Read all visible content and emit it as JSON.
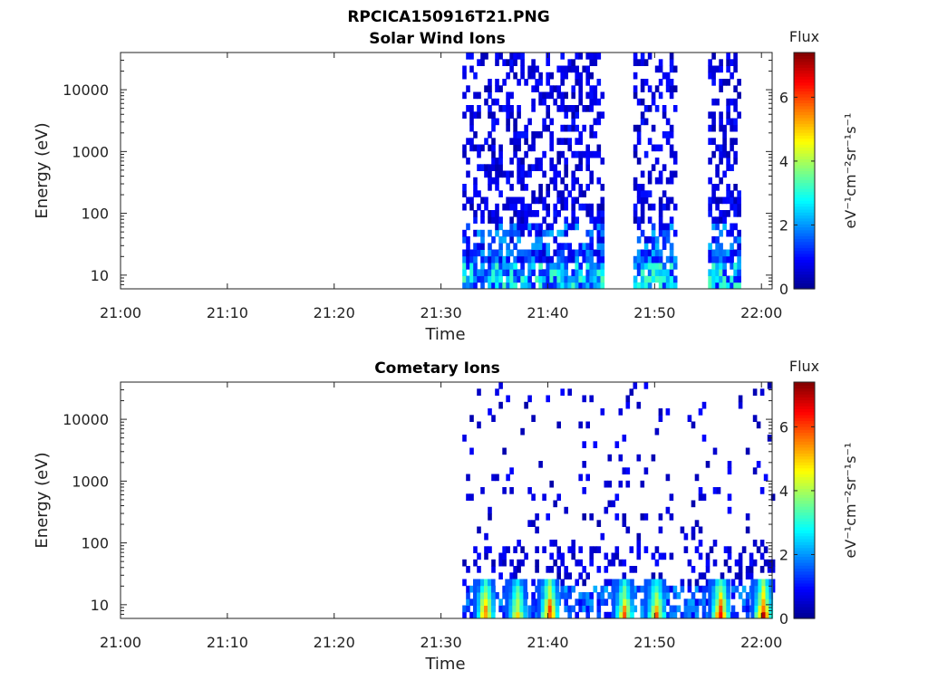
{
  "figure": {
    "title": "RPCICA150916T21.PNG"
  },
  "colorbar": {
    "title": "Flux",
    "unit_label": "eV⁻¹cm⁻²sr⁻¹s⁻¹",
    "range": [
      0,
      7.4
    ],
    "ticks": [
      "0",
      "2",
      "4",
      "6"
    ],
    "tick_values": [
      0,
      2,
      4,
      6
    ],
    "colormap": "jet",
    "colors": [
      "#00008f",
      "#0000ff",
      "#0080ff",
      "#00ffff",
      "#80ff80",
      "#ffff00",
      "#ff8000",
      "#ff0000",
      "#800000"
    ]
  },
  "chart_data": [
    {
      "type": "heatmap",
      "title": "Solar Wind Ions",
      "xlabel": "Time",
      "ylabel": "Energy (eV)",
      "x_tick_labels": [
        "21:00",
        "21:10",
        "21:20",
        "21:30",
        "21:40",
        "21:50",
        "22:00"
      ],
      "y_tick_labels": [
        "10",
        "100",
        "1000",
        "10000"
      ],
      "y_scale": "log",
      "xlim": [
        "21:00",
        "22:01"
      ],
      "ylim": [
        6,
        40000
      ],
      "active_intervals": [
        [
          "21:32",
          "21:45"
        ],
        [
          "21:48",
          "21:52"
        ],
        [
          "21:55",
          "21:58"
        ]
      ],
      "data_description_values": {
        "sparse_high_energy_flux": 0.4,
        "low_energy_flux_peak": 3.2
      }
    },
    {
      "type": "heatmap",
      "title": "Cometary Ions",
      "xlabel": "Time",
      "ylabel": "Energy (eV)",
      "x_tick_labels": [
        "21:00",
        "21:10",
        "21:20",
        "21:30",
        "21:40",
        "21:50",
        "22:00"
      ],
      "y_tick_labels": [
        "10",
        "100",
        "1000",
        "10000"
      ],
      "y_scale": "log",
      "xlim": [
        "21:00",
        "22:01"
      ],
      "ylim": [
        6,
        40000
      ],
      "bursts": [
        {
          "time": "21:34",
          "peak_flux": 6.2
        },
        {
          "time": "21:37",
          "peak_flux": 5.2
        },
        {
          "time": "21:40",
          "peak_flux": 6.5
        },
        {
          "time": "21:47",
          "peak_flux": 5.8
        },
        {
          "time": "21:50",
          "peak_flux": 5.8
        },
        {
          "time": "21:56",
          "peak_flux": 6.5
        },
        {
          "time": "22:00",
          "peak_flux": 6.8
        }
      ]
    }
  ]
}
